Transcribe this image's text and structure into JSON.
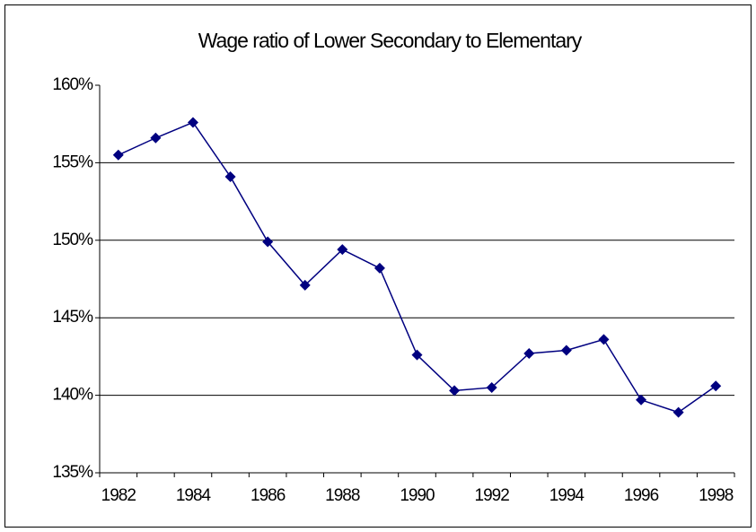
{
  "chart_data": {
    "type": "line",
    "title": "Wage ratio of Lower Secondary to Elementary",
    "categories": [
      "1982",
      null,
      "1984",
      null,
      "1986",
      null,
      "1988",
      null,
      "1990",
      null,
      "1992",
      null,
      "1994",
      null,
      "1996",
      null,
      "1998"
    ],
    "series": [
      {
        "color": "#000080",
        "values": [
          155.5,
          156.6,
          157.6,
          154.1,
          149.9,
          147.1,
          149.4,
          148.2,
          142.6,
          140.3,
          140.5,
          142.7,
          142.9,
          143.6,
          139.7,
          138.9,
          140.6
        ]
      }
    ],
    "ylim": [
      135,
      160
    ],
    "yticks": [
      {
        "value": 135,
        "label": "135%"
      },
      {
        "value": 140,
        "label": "140%"
      },
      {
        "value": 145,
        "label": "145%"
      },
      {
        "value": 150,
        "label": "150%"
      },
      {
        "value": 155,
        "label": "155%"
      },
      {
        "value": 160,
        "label": "160%"
      }
    ],
    "grid": true
  }
}
